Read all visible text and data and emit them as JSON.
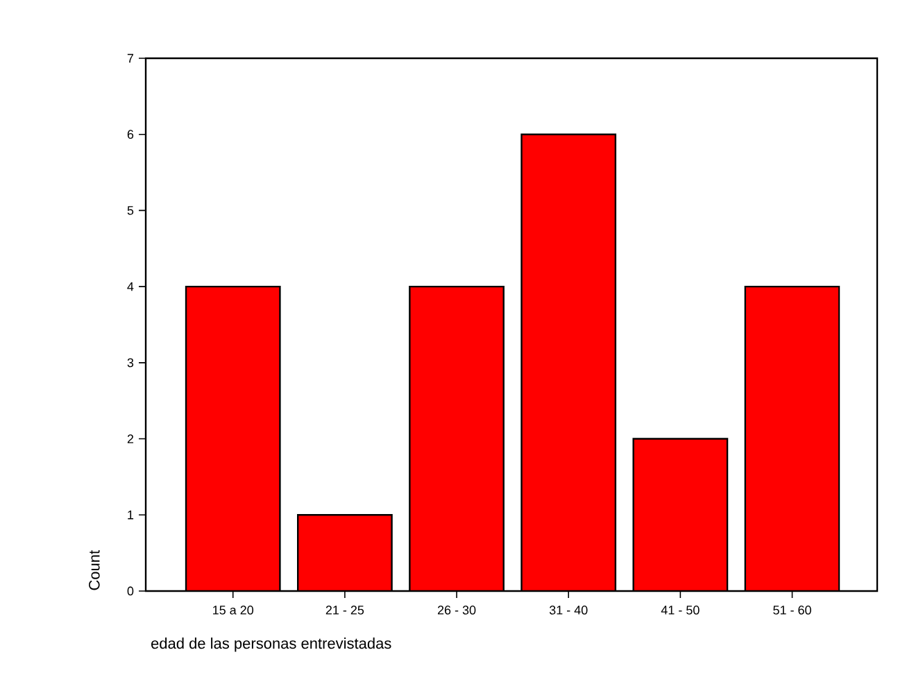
{
  "chart_data": {
    "type": "bar",
    "categories": [
      "15 a 20",
      "21 - 25",
      "26 - 30",
      "31 - 40",
      "41 - 50",
      "51 - 60"
    ],
    "values": [
      4,
      1,
      4,
      6,
      2,
      4
    ],
    "color": "#ff0000",
    "xlabel": "edad de las personas entrevistadas",
    "ylabel": "Count",
    "ylim": [
      0,
      7
    ],
    "yticks": [
      0,
      1,
      2,
      3,
      4,
      5,
      6,
      7
    ],
    "grid": false
  }
}
